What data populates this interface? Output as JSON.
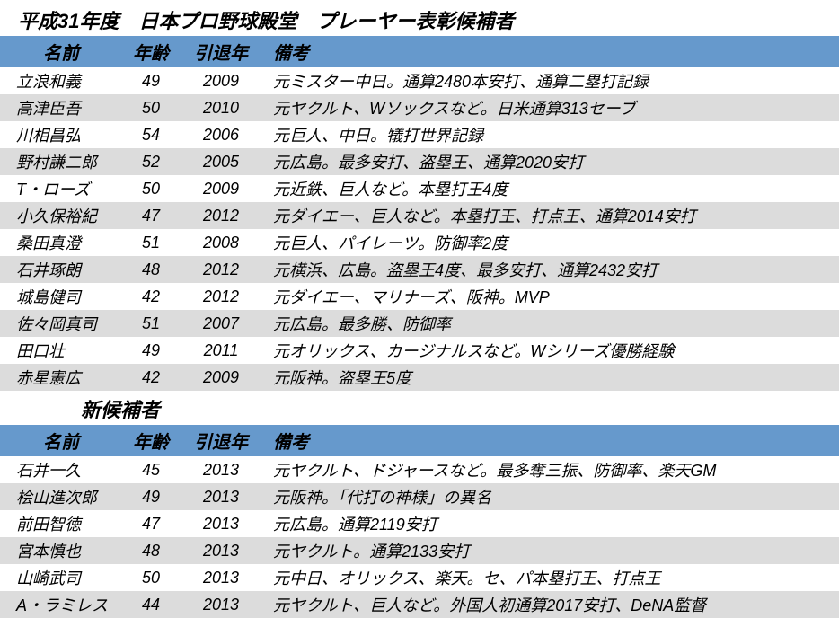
{
  "title": "平成31年度　日本プロ野球殿堂　プレーヤー表彰候補者",
  "subtitle": "新候補者",
  "columns": {
    "name": "名前",
    "age": "年齢",
    "year": "引退年",
    "remarks": "備考"
  },
  "colors": {
    "header_bg": "#6699cc",
    "row_odd": "#ffffff",
    "row_even": "#dcdcdc",
    "text": "#000000"
  },
  "candidates": [
    {
      "name": "立浪和義",
      "age": "49",
      "year": "2009",
      "remarks": "元ミスター中日。通算2480本安打、通算二塁打記録"
    },
    {
      "name": "高津臣吾",
      "age": "50",
      "year": "2010",
      "remarks": "元ヤクルト、Wソックスなど。日米通算313セーブ"
    },
    {
      "name": "川相昌弘",
      "age": "54",
      "year": "2006",
      "remarks": "元巨人、中日。犠打世界記録"
    },
    {
      "name": "野村謙二郎",
      "age": "52",
      "year": "2005",
      "remarks": "元広島。最多安打、盗塁王、通算2020安打"
    },
    {
      "name": "T・ローズ",
      "age": "50",
      "year": "2009",
      "remarks": "元近鉄、巨人など。本塁打王4度"
    },
    {
      "name": "小久保裕紀",
      "age": "47",
      "year": "2012",
      "remarks": "元ダイエー、巨人など。本塁打王、打点王、通算2014安打"
    },
    {
      "name": "桑田真澄",
      "age": "51",
      "year": "2008",
      "remarks": "元巨人、パイレーツ。防御率2度"
    },
    {
      "name": "石井琢朗",
      "age": "48",
      "year": "2012",
      "remarks": "元横浜、広島。盗塁王4度、最多安打、通算2432安打"
    },
    {
      "name": "城島健司",
      "age": "42",
      "year": "2012",
      "remarks": "元ダイエー、マリナーズ、阪神。MVP"
    },
    {
      "name": "佐々岡真司",
      "age": "51",
      "year": "2007",
      "remarks": "元広島。最多勝、防御率"
    },
    {
      "name": "田口壮",
      "age": "49",
      "year": "2011",
      "remarks": "元オリックス、カージナルスなど。Wシリーズ優勝経験"
    },
    {
      "name": "赤星憲広",
      "age": "42",
      "year": "2009",
      "remarks": "元阪神。盗塁王5度"
    }
  ],
  "new_candidates": [
    {
      "name": "石井一久",
      "age": "45",
      "year": "2013",
      "remarks": "元ヤクルト、ドジャースなど。最多奪三振、防御率、楽天GM"
    },
    {
      "name": "桧山進次郎",
      "age": "49",
      "year": "2013",
      "remarks": "元阪神。「代打の神様」の異名"
    },
    {
      "name": "前田智徳",
      "age": "47",
      "year": "2013",
      "remarks": "元広島。通算2119安打"
    },
    {
      "name": "宮本慎也",
      "age": "48",
      "year": "2013",
      "remarks": "元ヤクルト。通算2133安打"
    },
    {
      "name": "山崎武司",
      "age": "50",
      "year": "2013",
      "remarks": "元中日、オリックス、楽天。セ、パ本塁打王、打点王"
    },
    {
      "name": "A・ラミレス",
      "age": "44",
      "year": "2013",
      "remarks": "元ヤクルト、巨人など。外国人初通算2017安打、DeNA監督"
    }
  ]
}
